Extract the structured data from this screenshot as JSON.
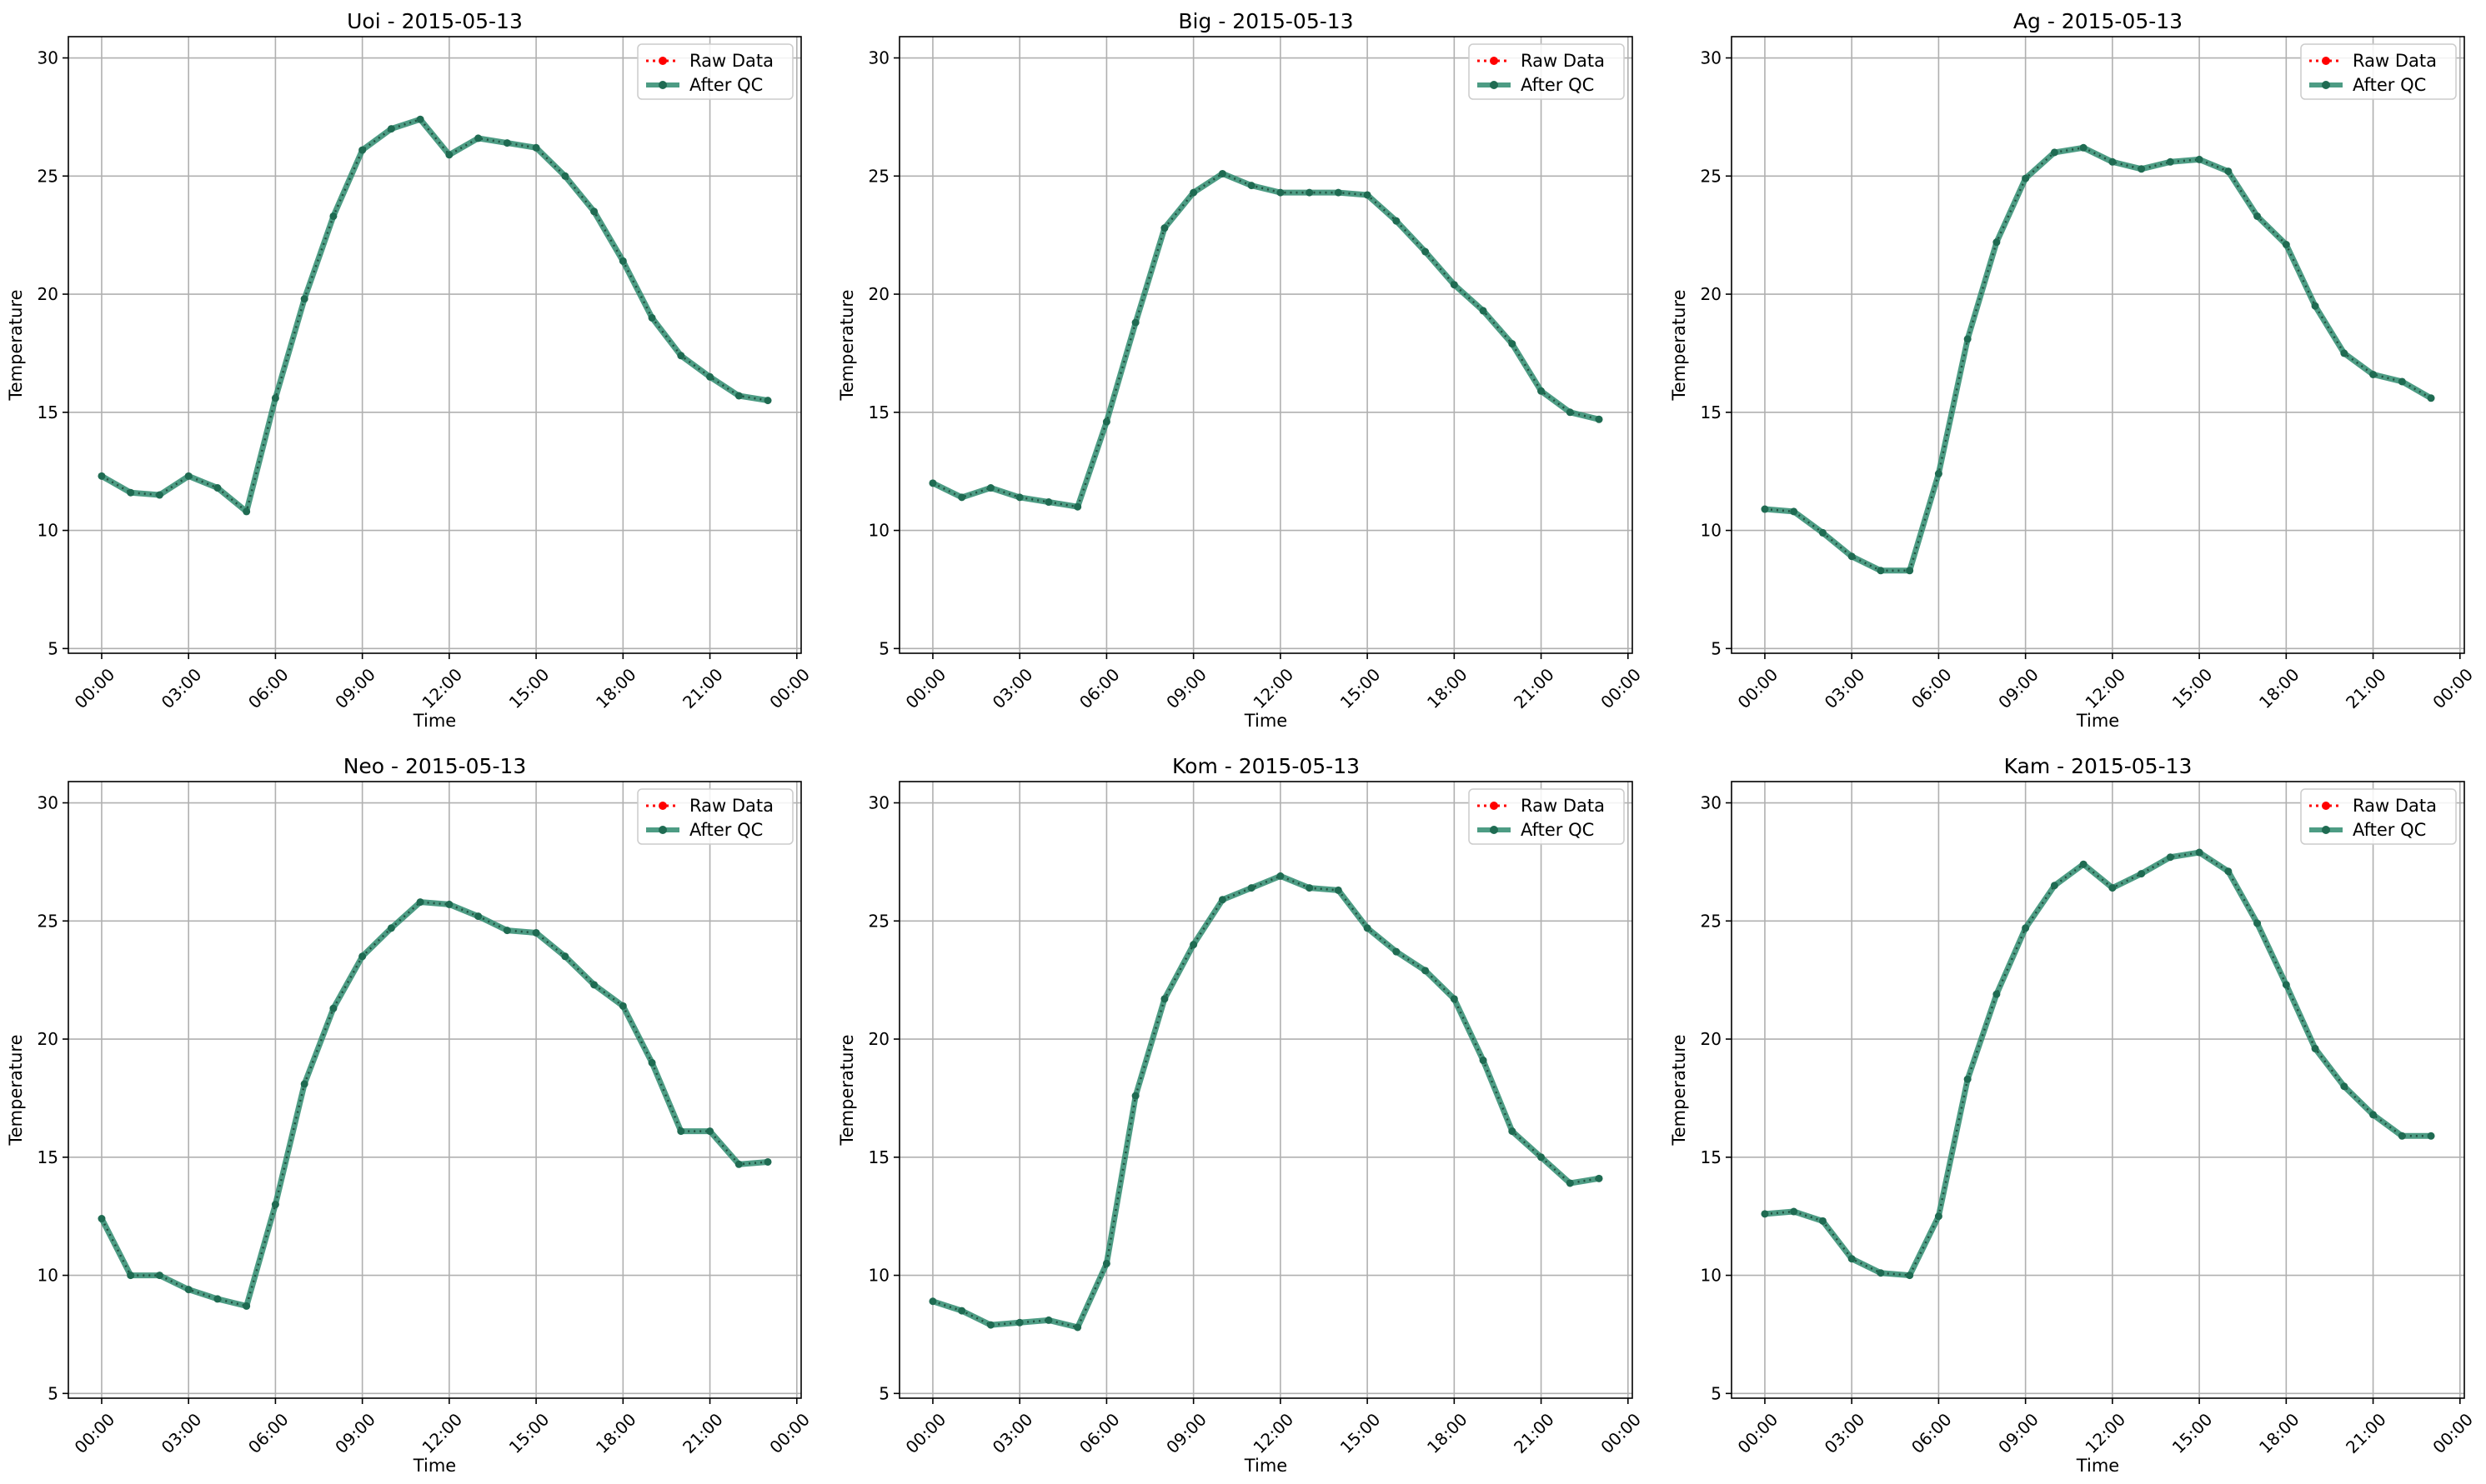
{
  "figure": {
    "background": "#ffffff",
    "rows": 2,
    "cols": 3
  },
  "style": {
    "raw_color": "#ff0000",
    "qc_color": "#2e8b6e",
    "grid_color": "#b0b0b0"
  },
  "chart_data": [
    {
      "type": "line",
      "title": "Uoi - 2015-05-13",
      "xlabel": "Time",
      "ylabel": "Temperature",
      "ylim": [
        4.8,
        30.9
      ],
      "yticks": [
        5,
        10,
        15,
        20,
        25,
        30
      ],
      "xlim": [
        -1.15,
        24.15
      ],
      "xticks": [
        0,
        3,
        6,
        9,
        12,
        15,
        18,
        21,
        24
      ],
      "xtick_labels": [
        "00:00",
        "03:00",
        "06:00",
        "09:00",
        "12:00",
        "15:00",
        "18:00",
        "21:00",
        "00:00"
      ],
      "grid": true,
      "legend": "upper right",
      "x": [
        0,
        1,
        2,
        3,
        4,
        5,
        6,
        7,
        8,
        9,
        10,
        11,
        12,
        13,
        14,
        15,
        16,
        17,
        18,
        19,
        20,
        21,
        22,
        23
      ],
      "series": [
        {
          "name": "Raw Data",
          "values": [
            12.3,
            11.6,
            11.5,
            12.3,
            11.8,
            10.8,
            15.6,
            19.8,
            23.3,
            26.1,
            27.0,
            27.4,
            25.9,
            26.6,
            26.4,
            26.2,
            25.0,
            23.5,
            21.4,
            19.0,
            17.4,
            16.5,
            15.7,
            15.5
          ]
        },
        {
          "name": "After QC",
          "values": [
            12.3,
            11.6,
            11.5,
            12.3,
            11.8,
            10.8,
            15.6,
            19.8,
            23.3,
            26.1,
            27.0,
            27.4,
            25.9,
            26.6,
            26.4,
            26.2,
            25.0,
            23.5,
            21.4,
            19.0,
            17.4,
            16.5,
            15.7,
            15.5
          ]
        }
      ]
    },
    {
      "type": "line",
      "title": "Big - 2015-05-13",
      "xlabel": "Time",
      "ylabel": "Temperature",
      "ylim": [
        4.8,
        30.9
      ],
      "yticks": [
        5,
        10,
        15,
        20,
        25,
        30
      ],
      "xlim": [
        -1.15,
        24.15
      ],
      "xticks": [
        0,
        3,
        6,
        9,
        12,
        15,
        18,
        21,
        24
      ],
      "xtick_labels": [
        "00:00",
        "03:00",
        "06:00",
        "09:00",
        "12:00",
        "15:00",
        "18:00",
        "21:00",
        "00:00"
      ],
      "grid": true,
      "legend": "upper right",
      "x": [
        0,
        1,
        2,
        3,
        4,
        5,
        6,
        7,
        8,
        9,
        10,
        11,
        12,
        13,
        14,
        15,
        16,
        17,
        18,
        19,
        20,
        21,
        22,
        23
      ],
      "series": [
        {
          "name": "Raw Data",
          "values": [
            12.0,
            11.4,
            11.8,
            11.4,
            11.2,
            11.0,
            14.6,
            18.8,
            22.8,
            24.3,
            25.1,
            24.6,
            24.3,
            24.3,
            24.3,
            24.2,
            23.1,
            21.8,
            20.4,
            19.3,
            17.9,
            15.9,
            15.0,
            14.7
          ]
        },
        {
          "name": "After QC",
          "values": [
            12.0,
            11.4,
            11.8,
            11.4,
            11.2,
            11.0,
            14.6,
            18.8,
            22.8,
            24.3,
            25.1,
            24.6,
            24.3,
            24.3,
            24.3,
            24.2,
            23.1,
            21.8,
            20.4,
            19.3,
            17.9,
            15.9,
            15.0,
            14.7
          ]
        }
      ]
    },
    {
      "type": "line",
      "title": "Ag - 2015-05-13",
      "xlabel": "Time",
      "ylabel": "Temperature",
      "ylim": [
        4.8,
        30.9
      ],
      "yticks": [
        5,
        10,
        15,
        20,
        25,
        30
      ],
      "xlim": [
        -1.15,
        24.15
      ],
      "xticks": [
        0,
        3,
        6,
        9,
        12,
        15,
        18,
        21,
        24
      ],
      "xtick_labels": [
        "00:00",
        "03:00",
        "06:00",
        "09:00",
        "12:00",
        "15:00",
        "18:00",
        "21:00",
        "00:00"
      ],
      "grid": true,
      "legend": "upper right",
      "x": [
        0,
        1,
        2,
        3,
        4,
        5,
        6,
        7,
        8,
        9,
        10,
        11,
        12,
        13,
        14,
        15,
        16,
        17,
        18,
        19,
        20,
        21,
        22,
        23
      ],
      "series": [
        {
          "name": "Raw Data",
          "values": [
            10.9,
            10.8,
            9.9,
            8.9,
            8.3,
            8.3,
            12.4,
            18.1,
            22.2,
            24.9,
            26.0,
            26.2,
            25.6,
            25.3,
            25.6,
            25.7,
            25.2,
            23.3,
            22.1,
            19.5,
            17.5,
            16.6,
            16.3,
            15.6
          ]
        },
        {
          "name": "After QC",
          "values": [
            10.9,
            10.8,
            9.9,
            8.9,
            8.3,
            8.3,
            12.4,
            18.1,
            22.2,
            24.9,
            26.0,
            26.2,
            25.6,
            25.3,
            25.6,
            25.7,
            25.2,
            23.3,
            22.1,
            19.5,
            17.5,
            16.6,
            16.3,
            15.6
          ]
        }
      ]
    },
    {
      "type": "line",
      "title": "Neo - 2015-05-13",
      "xlabel": "Time",
      "ylabel": "Temperature",
      "ylim": [
        4.8,
        30.9
      ],
      "yticks": [
        5,
        10,
        15,
        20,
        25,
        30
      ],
      "xlim": [
        -1.15,
        24.15
      ],
      "xticks": [
        0,
        3,
        6,
        9,
        12,
        15,
        18,
        21,
        24
      ],
      "xtick_labels": [
        "00:00",
        "03:00",
        "06:00",
        "09:00",
        "12:00",
        "15:00",
        "18:00",
        "21:00",
        "00:00"
      ],
      "grid": true,
      "legend": "upper right",
      "x": [
        0,
        1,
        2,
        3,
        4,
        5,
        6,
        7,
        8,
        9,
        10,
        11,
        12,
        13,
        14,
        15,
        16,
        17,
        18,
        19,
        20,
        21,
        22,
        23
      ],
      "series": [
        {
          "name": "Raw Data",
          "values": [
            12.4,
            10.0,
            10.0,
            9.4,
            9.0,
            8.7,
            13.0,
            18.1,
            21.3,
            23.5,
            24.7,
            25.8,
            25.7,
            25.2,
            24.6,
            24.5,
            23.5,
            22.3,
            21.4,
            19.0,
            16.1,
            16.1,
            14.7,
            14.8
          ]
        },
        {
          "name": "After QC",
          "values": [
            12.4,
            10.0,
            10.0,
            9.4,
            9.0,
            8.7,
            13.0,
            18.1,
            21.3,
            23.5,
            24.7,
            25.8,
            25.7,
            25.2,
            24.6,
            24.5,
            23.5,
            22.3,
            21.4,
            19.0,
            16.1,
            16.1,
            14.7,
            14.8
          ]
        }
      ]
    },
    {
      "type": "line",
      "title": "Kom - 2015-05-13",
      "xlabel": "Time",
      "ylabel": "Temperature",
      "ylim": [
        4.8,
        30.9
      ],
      "yticks": [
        5,
        10,
        15,
        20,
        25,
        30
      ],
      "xlim": [
        -1.15,
        24.15
      ],
      "xticks": [
        0,
        3,
        6,
        9,
        12,
        15,
        18,
        21,
        24
      ],
      "xtick_labels": [
        "00:00",
        "03:00",
        "06:00",
        "09:00",
        "12:00",
        "15:00",
        "18:00",
        "21:00",
        "00:00"
      ],
      "grid": true,
      "legend": "upper right",
      "x": [
        0,
        1,
        2,
        3,
        4,
        5,
        6,
        7,
        8,
        9,
        10,
        11,
        12,
        13,
        14,
        15,
        16,
        17,
        18,
        19,
        20,
        21,
        22,
        23
      ],
      "series": [
        {
          "name": "Raw Data",
          "values": [
            8.9,
            8.5,
            7.9,
            8.0,
            8.1,
            7.8,
            10.5,
            17.6,
            21.7,
            24.0,
            25.9,
            26.4,
            26.9,
            26.4,
            26.3,
            24.7,
            23.7,
            22.9,
            21.7,
            19.1,
            16.1,
            15.0,
            13.9,
            14.1
          ]
        },
        {
          "name": "After QC",
          "values": [
            8.9,
            8.5,
            7.9,
            8.0,
            8.1,
            7.8,
            10.5,
            17.6,
            21.7,
            24.0,
            25.9,
            26.4,
            26.9,
            26.4,
            26.3,
            24.7,
            23.7,
            22.9,
            21.7,
            19.1,
            16.1,
            15.0,
            13.9,
            14.1
          ]
        }
      ]
    },
    {
      "type": "line",
      "title": "Kam - 2015-05-13",
      "xlabel": "Time",
      "ylabel": "Temperature",
      "ylim": [
        4.8,
        30.9
      ],
      "yticks": [
        5,
        10,
        15,
        20,
        25,
        30
      ],
      "xlim": [
        -1.15,
        24.15
      ],
      "xticks": [
        0,
        3,
        6,
        9,
        12,
        15,
        18,
        21,
        24
      ],
      "xtick_labels": [
        "00:00",
        "03:00",
        "06:00",
        "09:00",
        "12:00",
        "15:00",
        "18:00",
        "21:00",
        "00:00"
      ],
      "grid": true,
      "legend": "upper right",
      "x": [
        0,
        1,
        2,
        3,
        4,
        5,
        6,
        7,
        8,
        9,
        10,
        11,
        12,
        13,
        14,
        15,
        16,
        17,
        18,
        19,
        20,
        21,
        22,
        23
      ],
      "series": [
        {
          "name": "Raw Data",
          "values": [
            12.6,
            12.7,
            12.3,
            10.7,
            10.1,
            10.0,
            12.5,
            18.3,
            21.9,
            24.7,
            26.5,
            27.4,
            26.4,
            27.0,
            27.7,
            27.9,
            27.1,
            24.9,
            22.3,
            19.6,
            18.0,
            16.8,
            15.9,
            15.9
          ]
        },
        {
          "name": "After QC",
          "values": [
            12.6,
            12.7,
            12.3,
            10.7,
            10.1,
            10.0,
            12.5,
            18.3,
            21.9,
            24.7,
            26.5,
            27.4,
            26.4,
            27.0,
            27.7,
            27.9,
            27.1,
            24.9,
            22.3,
            19.6,
            18.0,
            16.8,
            15.9,
            15.9
          ]
        }
      ]
    }
  ]
}
